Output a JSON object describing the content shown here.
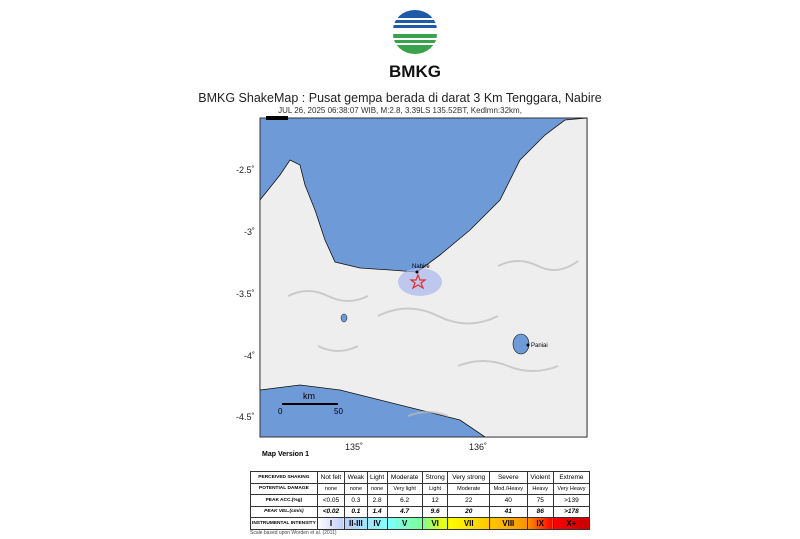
{
  "logo": {
    "text": "BMKG"
  },
  "header": {
    "title": "BMKG ShakeMap : Pusat gempa berada di darat 3 Km Tenggara, Nabire",
    "subtitle": "JUL 26, 2025 06:38:07 WIB, M:2.8, 3.39LS 135.52BT, Kedlmn:32km,"
  },
  "map": {
    "lat_ticks": [
      "-2.5˚",
      "-3˚",
      "-3.5˚",
      "-4˚",
      "-4.5˚"
    ],
    "lon_ticks": [
      "135˚",
      "136˚"
    ],
    "places": [
      "Nabire",
      "Paniai"
    ],
    "scale": {
      "unit": "km",
      "min": "0",
      "max": "50"
    },
    "epicenter_icon": "star-icon",
    "colors": {
      "sea": "#6f9ad8",
      "land": "#f2f2f2"
    }
  },
  "version": "Map Version 1",
  "legend": {
    "rows": [
      {
        "header": "PERCEIVED SHAKING",
        "cells": [
          "Not felt",
          "Weak",
          "Light",
          "Moderate",
          "Strong",
          "Very strong",
          "Severe",
          "Violent",
          "Extreme"
        ]
      },
      {
        "header": "POTENTIAL DAMAGE",
        "cells": [
          "none",
          "none",
          "none",
          "Very light",
          "Light",
          "Moderate",
          "Mod./Heavy",
          "Heavy",
          "Very Heavy"
        ]
      },
      {
        "header": "PEAK ACC.(%g)",
        "cells": [
          "<0.05",
          "0.3",
          "2.8",
          "6.2",
          "12",
          "22",
          "40",
          "75",
          ">139"
        ]
      },
      {
        "header": "PEAK VEL.(cm/s)",
        "cells": [
          "<0.02",
          "0.1",
          "1.4",
          "4.7",
          "9.6",
          "20",
          "41",
          "86",
          ">178"
        ]
      },
      {
        "header": "INSTRUMENTAL INTENSITY",
        "cells": [
          "I",
          "II-III",
          "IV",
          "V",
          "VI",
          "VII",
          "VIII",
          "IX",
          "X+"
        ]
      }
    ],
    "intensity_colors": [
      "#ffffff",
      "#bfccff",
      "#a0e6ff",
      "#80ffff",
      "#7aff93",
      "#ffff00",
      "#ffc800",
      "#ff9100",
      "#ff0000",
      "#c80000"
    ],
    "note": "Scale based upon Worden et al. (2011)"
  }
}
